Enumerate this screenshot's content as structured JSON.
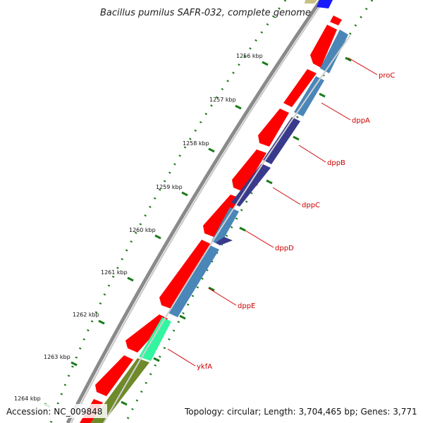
{
  "title": "Bacillus pumilus SAFR-032, complete genome",
  "footer": {
    "accession": "Accession: NC_009848",
    "topology": "Topology: circular; Length: 3,704,465 bp; Genes: 3,771"
  },
  "colors": {
    "backbone": "#8a8a8a",
    "forward_cds": "#ff0000",
    "gene_track": "#4a86b8",
    "dark_track": "#3a3a8c",
    "highlight": "#33f5a0",
    "olive": "#6f8a2a",
    "label": "#cc0000",
    "tick": "#1a7a1a"
  },
  "scale_labels": [
    {
      "label": "1256 kbp"
    },
    {
      "label": "1257 kbp"
    },
    {
      "label": "1258 kbp"
    },
    {
      "label": "1259 kbp"
    },
    {
      "label": "1260 kbp"
    },
    {
      "label": "1261 kbp"
    },
    {
      "label": "1262 kbp"
    },
    {
      "label": "1263 kbp"
    },
    {
      "label": "1264 kbp"
    }
  ],
  "genes": [
    {
      "name": "proC"
    },
    {
      "name": "dppA"
    },
    {
      "name": "dppB"
    },
    {
      "name": "dppC"
    },
    {
      "name": "dppD"
    },
    {
      "name": "dppE"
    },
    {
      "name": "ykfA"
    }
  ]
}
